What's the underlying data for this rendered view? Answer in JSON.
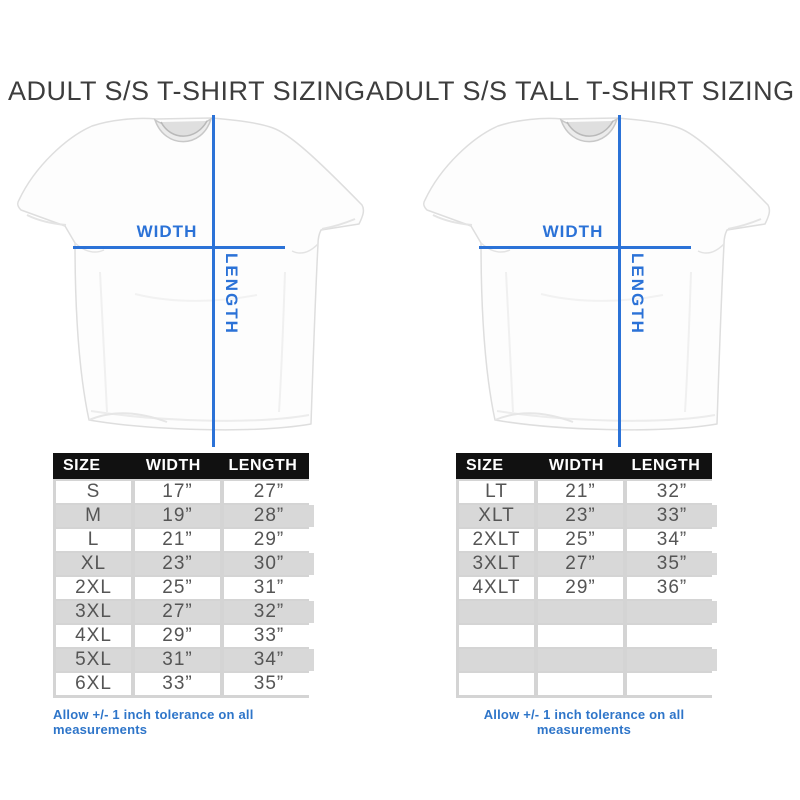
{
  "colors": {
    "accent_blue": "#2b72d7",
    "footnote_blue": "#2e75c9",
    "header_bg": "#111111",
    "row_gray": "#d8d8d8",
    "title_text": "#3d3d3d",
    "cell_text": "#555555"
  },
  "panels": [
    {
      "title": "ADULT S/S T-SHIRT SIZING",
      "width_label": "WIDTH",
      "length_label": "LENGTH",
      "footnote": "Allow +/- 1 inch tolerance on all measurements"
    },
    {
      "title": "ADULT S/S TALL T-SHIRT SIZING",
      "width_label": "WIDTH",
      "length_label": "LENGTH",
      "footnote": "Allow +/- 1 inch tolerance on all measurements"
    }
  ],
  "chart_data": [
    {
      "type": "table",
      "title": "ADULT S/S T-SHIRT SIZING",
      "columns": [
        "SIZE",
        "WIDTH",
        "LENGTH"
      ],
      "rows": [
        [
          "S",
          "17”",
          "27”"
        ],
        [
          "M",
          "19”",
          "28”"
        ],
        [
          "L",
          "21”",
          "29”"
        ],
        [
          "XL",
          "23”",
          "30”"
        ],
        [
          "2XL",
          "25”",
          "31”"
        ],
        [
          "3XL",
          "27”",
          "32”"
        ],
        [
          "4XL",
          "29”",
          "33”"
        ],
        [
          "5XL",
          "31”",
          "34”"
        ],
        [
          "6XL",
          "33”",
          "35”"
        ]
      ],
      "footnote": "Allow +/- 1 inch tolerance on all measurements"
    },
    {
      "type": "table",
      "title": "ADULT S/S TALL T-SHIRT SIZING",
      "columns": [
        "SIZE",
        "WIDTH",
        "LENGTH"
      ],
      "rows": [
        [
          "LT",
          "21”",
          "32”"
        ],
        [
          "XLT",
          "23”",
          "33”"
        ],
        [
          "2XLT",
          "25”",
          "34”"
        ],
        [
          "3XLT",
          "27”",
          "35”"
        ],
        [
          "4XLT",
          "29”",
          "36”"
        ],
        [
          "",
          "",
          ""
        ],
        [
          "",
          "",
          ""
        ],
        [
          "",
          "",
          ""
        ],
        [
          "",
          "",
          ""
        ]
      ],
      "footnote": "Allow +/- 1 inch tolerance on all measurements"
    }
  ]
}
